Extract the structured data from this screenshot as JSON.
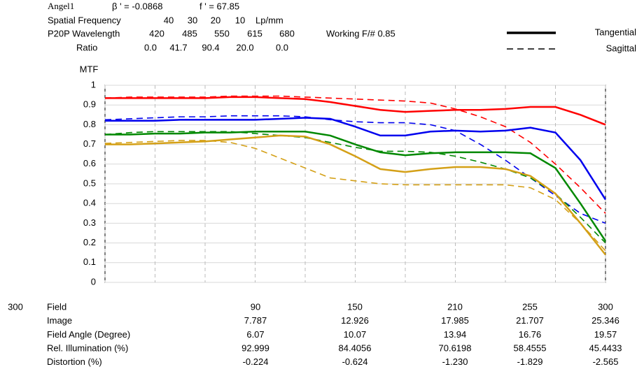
{
  "header": {
    "name": "Angel1",
    "beta": "β ' = -0.0868",
    "focal": "f ' = 67.85",
    "frequency_label": "Spatial Frequency",
    "frequencies": [
      "40",
      "30",
      "20",
      "10"
    ],
    "frequency_unit": "Lp/mm",
    "wavelength_label": "P20P  Wavelength",
    "wavelengths": [
      "420",
      "485",
      "550",
      "615",
      "680"
    ],
    "ratio_label": "Ratio",
    "ratios": [
      "0.0",
      "41.7",
      "90.4",
      "20.0",
      "0.0"
    ],
    "fnumber": "Working F/#  0.85"
  },
  "chart_data": {
    "type": "line",
    "y_label": "MTF",
    "x": [
      0,
      15,
      30,
      45,
      60,
      75,
      90,
      105,
      120,
      135,
      150,
      165,
      180,
      195,
      210,
      225,
      240,
      255,
      270,
      285,
      300
    ],
    "xlim": [
      0,
      300
    ],
    "xticks": [
      0,
      30,
      60,
      90,
      120,
      150,
      180,
      210,
      240,
      270,
      300
    ],
    "ylim": [
      0,
      1
    ],
    "yticks": [
      0,
      0.1,
      0.2,
      0.3,
      0.4,
      0.5,
      0.6,
      0.7,
      0.8,
      0.9,
      1
    ],
    "grid": true,
    "legend": [
      {
        "label": "Tangential",
        "dash": "solid"
      },
      {
        "label": "Sagittal",
        "dash": "dashed"
      }
    ],
    "series": [
      {
        "color": "#ff0000",
        "dash": "solid",
        "values": [
          0.935,
          0.935,
          0.935,
          0.935,
          0.935,
          0.94,
          0.94,
          0.935,
          0.93,
          0.915,
          0.895,
          0.875,
          0.865,
          0.87,
          0.875,
          0.875,
          0.88,
          0.89,
          0.89,
          0.85,
          0.8
        ]
      },
      {
        "color": "#ff0000",
        "dash": "dashed",
        "values": [
          0.935,
          0.94,
          0.94,
          0.94,
          0.94,
          0.945,
          0.945,
          0.945,
          0.94,
          0.935,
          0.93,
          0.925,
          0.92,
          0.91,
          0.88,
          0.84,
          0.79,
          0.71,
          0.6,
          0.48,
          0.35
        ]
      },
      {
        "color": "#0000ee",
        "dash": "solid",
        "values": [
          0.82,
          0.82,
          0.82,
          0.825,
          0.825,
          0.825,
          0.825,
          0.83,
          0.835,
          0.83,
          0.79,
          0.745,
          0.745,
          0.765,
          0.77,
          0.765,
          0.77,
          0.785,
          0.76,
          0.62,
          0.42
        ]
      },
      {
        "color": "#0000ee",
        "dash": "dashed",
        "values": [
          0.825,
          0.83,
          0.835,
          0.84,
          0.84,
          0.845,
          0.845,
          0.845,
          0.84,
          0.825,
          0.815,
          0.81,
          0.81,
          0.8,
          0.77,
          0.7,
          0.62,
          0.53,
          0.44,
          0.35,
          0.3
        ]
      },
      {
        "color": "#008800",
        "dash": "solid",
        "values": [
          0.75,
          0.75,
          0.755,
          0.755,
          0.76,
          0.76,
          0.765,
          0.765,
          0.765,
          0.745,
          0.7,
          0.66,
          0.645,
          0.655,
          0.66,
          0.66,
          0.66,
          0.655,
          0.58,
          0.4,
          0.21
        ]
      },
      {
        "color": "#008800",
        "dash": "dashed",
        "values": [
          0.75,
          0.76,
          0.765,
          0.765,
          0.765,
          0.765,
          0.755,
          0.745,
          0.735,
          0.71,
          0.685,
          0.665,
          0.665,
          0.66,
          0.64,
          0.61,
          0.575,
          0.53,
          0.45,
          0.33,
          0.2
        ]
      },
      {
        "color": "#d4a017",
        "dash": "solid",
        "values": [
          0.7,
          0.7,
          0.705,
          0.71,
          0.715,
          0.725,
          0.735,
          0.745,
          0.74,
          0.7,
          0.64,
          0.575,
          0.56,
          0.575,
          0.585,
          0.585,
          0.575,
          0.54,
          0.45,
          0.3,
          0.14
        ]
      },
      {
        "color": "#d4a017",
        "dash": "dashed",
        "values": [
          0.705,
          0.71,
          0.715,
          0.72,
          0.72,
          0.71,
          0.68,
          0.63,
          0.58,
          0.53,
          0.515,
          0.5,
          0.495,
          0.495,
          0.495,
          0.495,
          0.495,
          0.48,
          0.42,
          0.3,
          0.16
        ]
      }
    ]
  },
  "table": {
    "corner": "300",
    "rows": [
      [
        "Field",
        "90",
        "150",
        "210",
        "255",
        "300"
      ],
      [
        "Image",
        "7.787",
        "12.926",
        "17.985",
        "21.707",
        "25.346"
      ],
      [
        "Field Angle (Degree)",
        "6.07",
        "10.07",
        "13.94",
        "16.76",
        "19.57"
      ],
      [
        "Rel. Illumination (%)",
        "92.999",
        "84.4056",
        "70.6198",
        "58.4555",
        "45.4433"
      ],
      [
        "Distortion (%)",
        "-0.224",
        "-0.624",
        "-1.230",
        "-1.829",
        "-2.565"
      ]
    ]
  }
}
